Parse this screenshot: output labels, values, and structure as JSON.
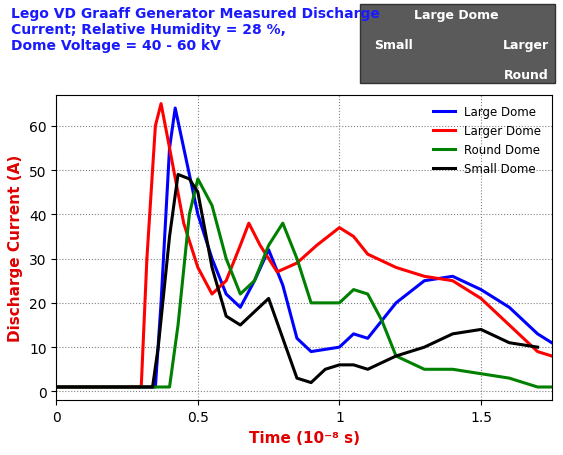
{
  "chart_data": {
    "type": "line",
    "title": "Lego VD Graaff Generator Measured Discharge\nCurrent; Relative Humidity = 28 %,\nDome Voltage = 40 - 60 kV",
    "x_label": "Time (10⁻⁸ s)",
    "y_label": "Discharge Current (A)",
    "annotations": [
      "Large Dome",
      "Small",
      "Larger",
      "Round"
    ],
    "xlim": [
      0,
      1.75
    ],
    "xticks": [
      0,
      0.5,
      1,
      1.5
    ],
    "ylim": [
      -2,
      67
    ],
    "yticks": [
      0,
      10,
      20,
      30,
      40,
      50,
      60
    ],
    "grid": true,
    "legend": "upper right",
    "series": [
      {
        "name": "Large Dome",
        "color": "#0000ff",
        "x": [
          0,
          0.1,
          0.2,
          0.3,
          0.35,
          0.37,
          0.4,
          0.42,
          0.45,
          0.5,
          0.55,
          0.6,
          0.65,
          0.7,
          0.75,
          0.8,
          0.85,
          0.9,
          1.0,
          1.05,
          1.1,
          1.2,
          1.3,
          1.4,
          1.5,
          1.6,
          1.7,
          1.75
        ],
        "values": [
          1,
          1,
          1,
          1,
          1,
          20,
          55,
          64,
          55,
          40,
          30,
          22,
          19,
          25,
          32,
          24,
          12,
          9,
          10,
          13,
          12,
          20,
          25,
          26,
          23,
          19,
          13,
          11
        ]
      },
      {
        "name": "Larger Dome",
        "color": "#ff0000",
        "x": [
          0,
          0.1,
          0.2,
          0.3,
          0.32,
          0.35,
          0.37,
          0.4,
          0.45,
          0.5,
          0.55,
          0.6,
          0.65,
          0.68,
          0.72,
          0.78,
          0.85,
          0.92,
          1.0,
          1.05,
          1.1,
          1.2,
          1.3,
          1.4,
          1.5,
          1.6,
          1.7,
          1.75
        ],
        "values": [
          1,
          1,
          1,
          1,
          30,
          60,
          65,
          55,
          38,
          28,
          22,
          25,
          33,
          38,
          33,
          27,
          29,
          33,
          37,
          35,
          31,
          28,
          26,
          25,
          21,
          15,
          9,
          8
        ]
      },
      {
        "name": "Round Dome",
        "color": "#008000",
        "x": [
          0,
          0.1,
          0.2,
          0.3,
          0.4,
          0.43,
          0.47,
          0.5,
          0.55,
          0.6,
          0.65,
          0.7,
          0.75,
          0.8,
          0.85,
          0.9,
          0.95,
          1.0,
          1.05,
          1.1,
          1.15,
          1.2,
          1.3,
          1.4,
          1.5,
          1.6,
          1.7,
          1.75
        ],
        "values": [
          1,
          1,
          1,
          1,
          1,
          15,
          40,
          48,
          42,
          30,
          22,
          25,
          33,
          38,
          30,
          20,
          20,
          20,
          23,
          22,
          16,
          8,
          5,
          5,
          4,
          3,
          1,
          1
        ]
      },
      {
        "name": "Small Dome",
        "color": "#000000",
        "x": [
          0,
          0.1,
          0.2,
          0.3,
          0.34,
          0.36,
          0.4,
          0.43,
          0.47,
          0.5,
          0.55,
          0.6,
          0.65,
          0.7,
          0.75,
          0.8,
          0.85,
          0.9,
          0.95,
          1.0,
          1.05,
          1.1,
          1.2,
          1.3,
          1.4,
          1.5,
          1.6,
          1.7
        ],
        "values": [
          1,
          1,
          1,
          1,
          1,
          10,
          35,
          49,
          48,
          45,
          28,
          17,
          15,
          18,
          21,
          12,
          3,
          2,
          5,
          6,
          6,
          5,
          8,
          10,
          13,
          14,
          11,
          10
        ]
      }
    ]
  }
}
